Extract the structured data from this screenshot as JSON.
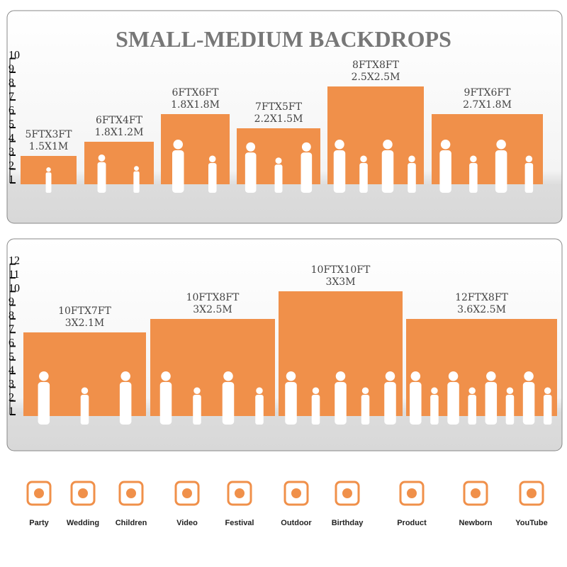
{
  "title": "SMALL-MEDIUM BACKDROPS",
  "panels": [
    {
      "ruler": [
        1,
        2,
        3,
        4,
        5,
        6,
        7,
        8,
        9,
        10
      ],
      "backdrops": [
        {
          "feet": "5FTX3FT",
          "meters": "1.5X1M"
        },
        {
          "feet": "6FTX4FT",
          "meters": "1.8X1.2M"
        },
        {
          "feet": "6FTX6FT",
          "meters": "1.8X1.8M"
        },
        {
          "feet": "7FTX5FT",
          "meters": "2.2X1.5M"
        },
        {
          "feet": "8FTX8FT",
          "meters": "2.5X2.5M"
        },
        {
          "feet": "9FTX6FT",
          "meters": "2.7X1.8M"
        }
      ]
    },
    {
      "ruler": [
        1,
        2,
        3,
        4,
        5,
        6,
        7,
        8,
        9,
        10,
        11,
        12
      ],
      "backdrops": [
        {
          "feet": "10FTX7FT",
          "meters": "3X2.1M"
        },
        {
          "feet": "10FTX8FT",
          "meters": "3X2.5M"
        },
        {
          "feet": "10FTX10FT",
          "meters": "3X3M"
        },
        {
          "feet": "12FTX8FT",
          "meters": "3.6X2.5M"
        }
      ]
    }
  ],
  "uses": [
    "Party",
    "Wedding",
    "Children",
    "Video",
    "Festival",
    "Outdoor",
    "Birthday",
    "Product",
    "Newborn",
    "YouTube"
  ]
}
